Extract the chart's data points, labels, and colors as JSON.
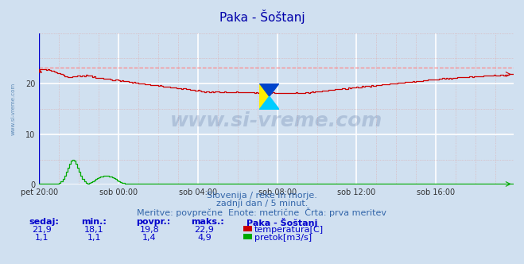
{
  "title": "Paka - Šoštanj",
  "bg_color": "#d0e0f0",
  "plot_bg_color": "#d0e0f0",
  "xlim": [
    0,
    287
  ],
  "ylim": [
    0,
    30
  ],
  "yticks": [
    0,
    10,
    20
  ],
  "xtick_labels": [
    "pet 20:00",
    "sob 00:00",
    "sob 04:00",
    "sob 08:00",
    "sob 12:00",
    "sob 16:00"
  ],
  "xtick_positions": [
    0,
    48,
    96,
    144,
    192,
    240
  ],
  "temp_color": "#cc0000",
  "flow_color": "#00aa00",
  "dashed_line_color": "#ff8888",
  "dashed_line_value": 23.2,
  "temp_max": 22.9,
  "temp_min": 18.1,
  "temp_avg": 19.8,
  "temp_now": 21.9,
  "flow_max": 4.9,
  "flow_min": 1.1,
  "flow_avg": 1.4,
  "flow_now": 1.1,
  "watermark": "www.si-vreme.com",
  "watermark_color": "#1a3a7a",
  "watermark_alpha": 0.18,
  "subtitle1": "Slovenija / reke in morje.",
  "subtitle2": "zadnji dan / 5 minut.",
  "subtitle3": "Meritve: povprečne  Enote: metrične  Črta: prva meritev",
  "table_headers": [
    "sedaj:",
    "min.:",
    "povpr.:",
    "maks.:"
  ],
  "table_header_color": "#0000cc",
  "table_data_color": "#0000cc",
  "station_name": "Paka - Šoštanj",
  "label_temp": "temperatura[C]",
  "label_flow": "pretok[m3/s]",
  "figsize": [
    6.59,
    3.32
  ],
  "dpi": 100
}
